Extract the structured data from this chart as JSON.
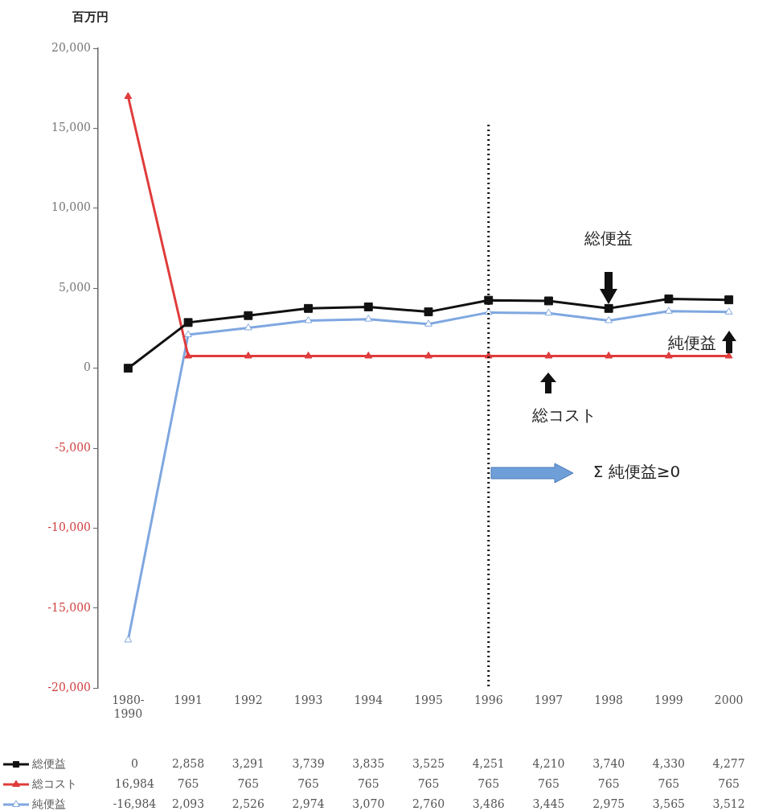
{
  "chart_data": {
    "type": "line",
    "ylabel": "百万円",
    "categories": [
      "1980-1990",
      "1991",
      "1992",
      "1993",
      "1994",
      "1995",
      "1996",
      "1997",
      "1998",
      "1999",
      "2000"
    ],
    "series": [
      {
        "name": "総便益",
        "color": "#111111",
        "marker": "square",
        "values": [
          0,
          2858,
          3291,
          3739,
          3835,
          3525,
          4251,
          4210,
          3740,
          4330,
          4277
        ],
        "value_labels": [
          "0",
          "2,858",
          "3,291",
          "3,739",
          "3,835",
          "3,525",
          "4,251",
          "4,210",
          "3,740",
          "4,330",
          "4,277"
        ]
      },
      {
        "name": "総コスト",
        "color": "#e03c3c",
        "marker": "triangle",
        "values": [
          16984,
          765,
          765,
          765,
          765,
          765,
          765,
          765,
          765,
          765,
          765
        ],
        "value_labels": [
          "16,984",
          "765",
          "765",
          "765",
          "765",
          "765",
          "765",
          "765",
          "765",
          "765",
          "765"
        ]
      },
      {
        "name": "純便益",
        "color": "#7fa7e0",
        "marker": "triangle",
        "values": [
          -16984,
          2093,
          2526,
          2974,
          3070,
          2760,
          3486,
          3445,
          2975,
          3565,
          3512
        ],
        "value_labels": [
          "-16,984",
          "2,093",
          "2,526",
          "2,974",
          "3,070",
          "2,760",
          "3,486",
          "3,445",
          "2,975",
          "3,565",
          "3,512"
        ]
      }
    ],
    "ylim": [
      -20000,
      20000
    ],
    "yticks": [
      {
        "value": -20000,
        "label": "-20,000"
      },
      {
        "value": -15000,
        "label": "-15,000"
      },
      {
        "value": -10000,
        "label": "-10,000"
      },
      {
        "value": -5000,
        "label": "-5,000"
      },
      {
        "value": 0,
        "label": "0"
      },
      {
        "value": 5000,
        "label": "5,000"
      },
      {
        "value": 10000,
        "label": "10,000"
      },
      {
        "value": 15000,
        "label": "15,000"
      },
      {
        "value": 20000,
        "label": "20,000"
      }
    ],
    "legend": "bottom left",
    "ref_lines": [
      {
        "axis": "x",
        "value": "1996",
        "color": "#111111",
        "line_style": "dotted"
      }
    ],
    "annotations": [
      "総便益",
      "純便益",
      "総コスト",
      "Σ 純便益≥0"
    ]
  }
}
